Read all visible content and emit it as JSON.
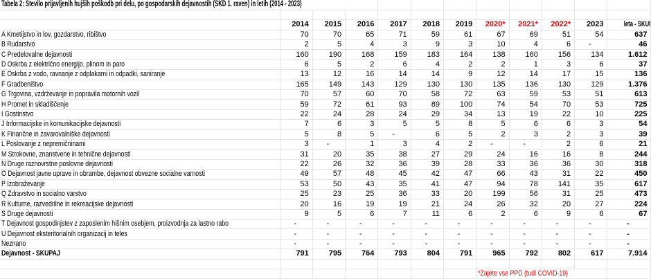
{
  "title": "Tabela 2: Število prijavljenih hujših poškodb pri delu, po gospodarskih dejavnostih (SKD 1. raven) in letih (2014 - 2023)",
  "footnote": "*Zajete vse PPD (tudi COVID-19)",
  "colors": {
    "header_highlight_red": "#e00000",
    "gridline": "#e4e4e4",
    "text": "#000000",
    "background": "#ffffff"
  },
  "table": {
    "year_headers": [
      {
        "label": "2014",
        "red": false
      },
      {
        "label": "2015",
        "red": false
      },
      {
        "label": "2016",
        "red": false
      },
      {
        "label": "2017",
        "red": false
      },
      {
        "label": "2018",
        "red": false
      },
      {
        "label": "2019",
        "red": false
      },
      {
        "label": "2020*",
        "red": true
      },
      {
        "label": "2021*",
        "red": true
      },
      {
        "label": "2022*",
        "red": true
      },
      {
        "label": "2023",
        "red": false
      }
    ],
    "total_header": "leta - SKUPAJ",
    "rows": [
      {
        "label": "A Kmetijstvo in lov, gozdarstvo, ribištvo",
        "values": [
          "70",
          "70",
          "65",
          "71",
          "59",
          "61",
          "67",
          "69",
          "51",
          "54"
        ],
        "total": "637"
      },
      {
        "label": "B Rudarstvo",
        "values": [
          "2",
          "5",
          "4",
          "3",
          "9",
          "3",
          "10",
          "4",
          "6",
          "-"
        ],
        "total": "46"
      },
      {
        "label": "C Predelovalne dejavnosti",
        "values": [
          "160",
          "190",
          "168",
          "159",
          "183",
          "164",
          "138",
          "160",
          "156",
          "134"
        ],
        "total": "1.612"
      },
      {
        "label": "D Oskrba z električno energijo, plinom in paro",
        "values": [
          "6",
          "5",
          "2",
          "6",
          "4",
          "2",
          "2",
          "1",
          "3",
          "6"
        ],
        "total": "37"
      },
      {
        "label": "E Oskrba z vodo, ravnanje z odplakami in odpadki, saniranje",
        "values": [
          "13",
          "12",
          "16",
          "14",
          "14",
          "9",
          "12",
          "14",
          "17",
          "15"
        ],
        "total": "136"
      },
      {
        "label": "F Gradbeništvo",
        "values": [
          "165",
          "149",
          "143",
          "129",
          "130",
          "130",
          "135",
          "136",
          "130",
          "129"
        ],
        "total": "1.376"
      },
      {
        "label": "G Trgovina, vzdrževanje in popravila motornih vozil",
        "values": [
          "70",
          "57",
          "60",
          "70",
          "58",
          "72",
          "63",
          "59",
          "53",
          "51"
        ],
        "total": "613"
      },
      {
        "label": "H Promet in skladiščenje",
        "values": [
          "59",
          "72",
          "61",
          "93",
          "89",
          "100",
          "74",
          "54",
          "70",
          "53"
        ],
        "total": "725"
      },
      {
        "label": "I Gostinstvo",
        "values": [
          "22",
          "24",
          "28",
          "24",
          "29",
          "34",
          "13",
          "19",
          "22",
          "10"
        ],
        "total": "225"
      },
      {
        "label": "J Informacijske in komunikacijske dejavnosti",
        "values": [
          "7",
          "6",
          "3",
          "5",
          "5",
          "8",
          "5",
          "6",
          "6",
          "3"
        ],
        "total": "54"
      },
      {
        "label": "K Finančne in zavarovalniške dejavnosti",
        "values": [
          "5",
          "8",
          "5",
          "-",
          "6",
          "5",
          "2",
          "3",
          "2",
          "3"
        ],
        "total": "39"
      },
      {
        "label": "L Poslovanje z nepremičninami",
        "values": [
          "3",
          "-",
          "1",
          "3",
          "4",
          "2",
          "-",
          "-",
          "2",
          "6"
        ],
        "total": "21"
      },
      {
        "label": "M Strokovne, znanstvene in tehnične dejavnosti",
        "values": [
          "31",
          "20",
          "35",
          "38",
          "27",
          "29",
          "24",
          "16",
          "16",
          "8"
        ],
        "total": "244"
      },
      {
        "label": "N Druge raznovrstne poslovne dejavnosti",
        "values": [
          "22",
          "26",
          "32",
          "36",
          "39",
          "28",
          "33",
          "36",
          "36",
          "30"
        ],
        "total": "318"
      },
      {
        "label": "O Dejavnost javne uprave in obrambe, dejavnost obvezne socialne varnosti",
        "values": [
          "49",
          "57",
          "48",
          "45",
          "42",
          "47",
          "66",
          "43",
          "31",
          "22"
        ],
        "total": "450"
      },
      {
        "label": "P Izobraževanje",
        "values": [
          "53",
          "50",
          "43",
          "35",
          "41",
          "47",
          "94",
          "78",
          "141",
          "35"
        ],
        "total": "617"
      },
      {
        "label": "Q Zdravstvo in socialno varstvo",
        "values": [
          "25",
          "23",
          "25",
          "36",
          "33",
          "20",
          "199",
          "56",
          "31",
          "25"
        ],
        "total": "473"
      },
      {
        "label": "R Kulturne, razvedrilne in rekreacijske dejavnosti",
        "values": [
          "20",
          "16",
          "19",
          "19",
          "21",
          "24",
          "26",
          "32",
          "20",
          "27"
        ],
        "total": "224"
      },
      {
        "label": "S Druge dejavnosti",
        "values": [
          "9",
          "5",
          "6",
          "7",
          "11",
          "6",
          "2",
          "6",
          "9",
          "6"
        ],
        "total": "67"
      },
      {
        "label": "T Dejavnost gospodinjstev z zaposlenim hišnim osebjem, proizvodnja za lastno rabo",
        "values": [
          "-",
          "-",
          "-",
          "-",
          "-",
          "-",
          "-",
          "-",
          "-",
          "-"
        ],
        "total": "-"
      },
      {
        "label": "U Dejavnost eksteritorialnih organizacij in teles",
        "values": [
          "-",
          "-",
          "-",
          "-",
          "-",
          "-",
          "-",
          "-",
          "-",
          "-"
        ],
        "total": "-"
      },
      {
        "label": "Neznano",
        "values": [
          "-",
          "-",
          "-",
          "-",
          "-",
          "-",
          "-",
          "-",
          "-",
          "-"
        ],
        "total": "-"
      }
    ],
    "total_row": {
      "label": "Dejavnost - SKUPAJ",
      "values": [
        "791",
        "795",
        "764",
        "793",
        "804",
        "791",
        "965",
        "792",
        "802",
        "617"
      ],
      "total": "7.914"
    }
  }
}
